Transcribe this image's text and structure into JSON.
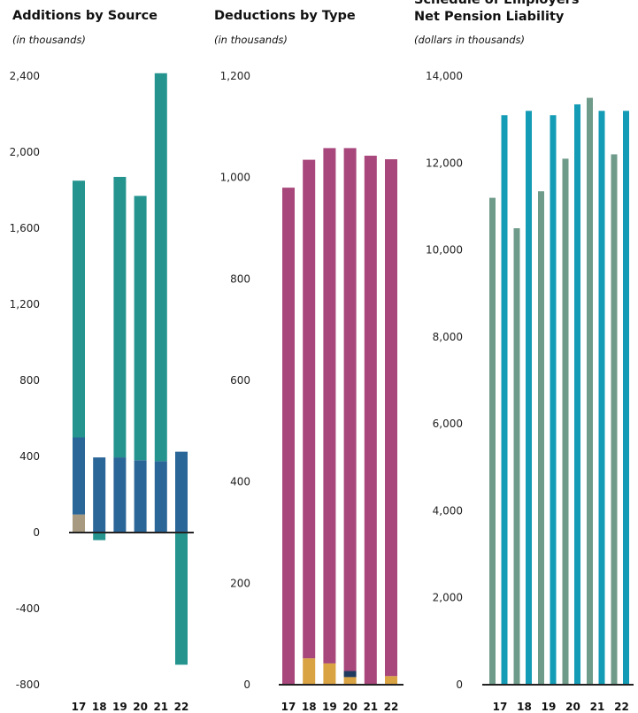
{
  "chart_data": [
    {
      "type": "bar",
      "stacked": true,
      "title": "Additions by Source",
      "subtitle": "(in thousands)",
      "categories": [
        "17",
        "18",
        "19",
        "20",
        "21",
        "22"
      ],
      "ylim": [
        -800,
        2400
      ],
      "yticks": [
        2400,
        2000,
        1600,
        1200,
        800,
        400,
        0,
        -400,
        -800
      ],
      "ytick_labels": [
        "2,400",
        "2,000",
        "1,600",
        "1,200",
        "800",
        "400",
        "0",
        "-400",
        "-800"
      ],
      "colors": [
        "#a89a80",
        "#2b6698",
        "#25948f"
      ],
      "series": [
        {
          "values": [
            95,
            0,
            0,
            0,
            0,
            0
          ]
        },
        {
          "values": [
            405,
            395,
            395,
            380,
            375,
            425
          ]
        },
        {
          "values": [
            1350,
            -40,
            1475,
            1390,
            2040,
            -695
          ]
        }
      ]
    },
    {
      "type": "bar",
      "stacked": true,
      "title": "Deductions by Type",
      "subtitle": "(in thousands)",
      "categories": [
        "17",
        "18",
        "19",
        "20",
        "21",
        "22"
      ],
      "ylim": [
        0,
        1200
      ],
      "yticks": [
        1200,
        1000,
        800,
        600,
        400,
        200,
        0
      ],
      "ytick_labels": [
        "1,200",
        "1,000",
        "800",
        "600",
        "400",
        "200",
        "0"
      ],
      "colors": [
        "#d9a343",
        "#1f3a5f",
        "#a7477b"
      ],
      "series": [
        {
          "values": [
            0,
            52,
            42,
            15,
            0,
            17
          ]
        },
        {
          "values": [
            0,
            0,
            0,
            12,
            0,
            0
          ]
        },
        {
          "values": [
            980,
            983,
            1016,
            1031,
            1043,
            1019
          ]
        }
      ]
    },
    {
      "type": "bar",
      "title": "Schedule of Employers'\nNet Pension Liability",
      "subtitle": "(dollars in thousands)",
      "categories": [
        "17",
        "18",
        "19",
        "20",
        "21",
        "22"
      ],
      "ylim": [
        0,
        14000
      ],
      "yticks": [
        14000,
        12000,
        10000,
        8000,
        6000,
        4000,
        2000,
        0
      ],
      "ytick_labels": [
        "14,000",
        "12,000",
        "10,000",
        "8,000",
        "6,000",
        "4,000",
        "2,000",
        "0"
      ],
      "colors": [
        "#6f9b8a",
        "#149bb5"
      ],
      "series": [
        {
          "values": [
            11200,
            10500,
            11350,
            12100,
            13500,
            12200
          ]
        },
        {
          "values": [
            13100,
            13200,
            13100,
            13350,
            13200,
            13200
          ]
        }
      ]
    }
  ]
}
